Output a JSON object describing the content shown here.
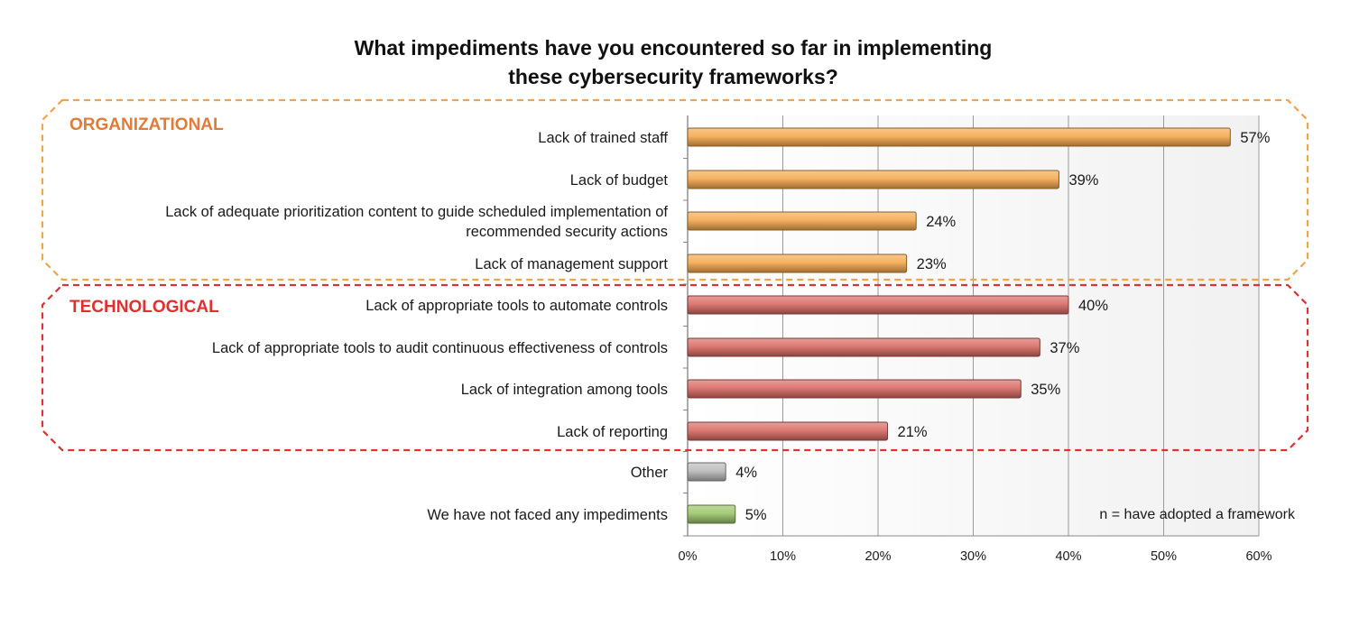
{
  "chart_data": {
    "type": "bar",
    "orientation": "horizontal",
    "title_lines": [
      "What impediments have you encountered so far in implementing",
      "these cybersecurity frameworks?"
    ],
    "xlim": [
      0,
      60
    ],
    "ticks": [
      "0%",
      "10%",
      "20%",
      "30%",
      "40%",
      "50%",
      "60%"
    ],
    "grid": true,
    "note": "n = have adopted a framework",
    "groups": [
      {
        "label": "ORGANIZATIONAL",
        "color": "#E07B39",
        "border_color": "#F2A44A"
      },
      {
        "label": "TECHNOLOGICAL",
        "color": "#E03030",
        "border_color": "#E03030"
      }
    ],
    "series_colors": {
      "organizational": "#F5A94E",
      "technological": "#D96A63",
      "other": "#B9B9B9",
      "none": "#9CC56A"
    },
    "bars": [
      {
        "label_lines": [
          "Lack of trained staff"
        ],
        "value": 57,
        "display": "57%",
        "series": "organizational"
      },
      {
        "label_lines": [
          "Lack of budget"
        ],
        "value": 39,
        "display": "39%",
        "series": "organizational"
      },
      {
        "label_lines": [
          "Lack of adequate prioritization content to guide scheduled implementation of",
          "recommended security actions"
        ],
        "value": 24,
        "display": "24%",
        "series": "organizational"
      },
      {
        "label_lines": [
          "Lack of management support"
        ],
        "value": 23,
        "display": "23%",
        "series": "organizational"
      },
      {
        "label_lines": [
          "Lack of appropriate tools to automate controls"
        ],
        "value": 40,
        "display": "40%",
        "series": "technological"
      },
      {
        "label_lines": [
          "Lack of appropriate tools to audit continuous effectiveness of controls"
        ],
        "value": 37,
        "display": "37%",
        "series": "technological"
      },
      {
        "label_lines": [
          "Lack of integration among tools"
        ],
        "value": 35,
        "display": "35%",
        "series": "technological"
      },
      {
        "label_lines": [
          "Lack of reporting"
        ],
        "value": 21,
        "display": "21%",
        "series": "technological"
      },
      {
        "label_lines": [
          "Other"
        ],
        "value": 4,
        "display": "4%",
        "series": "other"
      },
      {
        "label_lines": [
          "We have not faced any impediments"
        ],
        "value": 5,
        "display": "5%",
        "series": "none"
      }
    ]
  }
}
